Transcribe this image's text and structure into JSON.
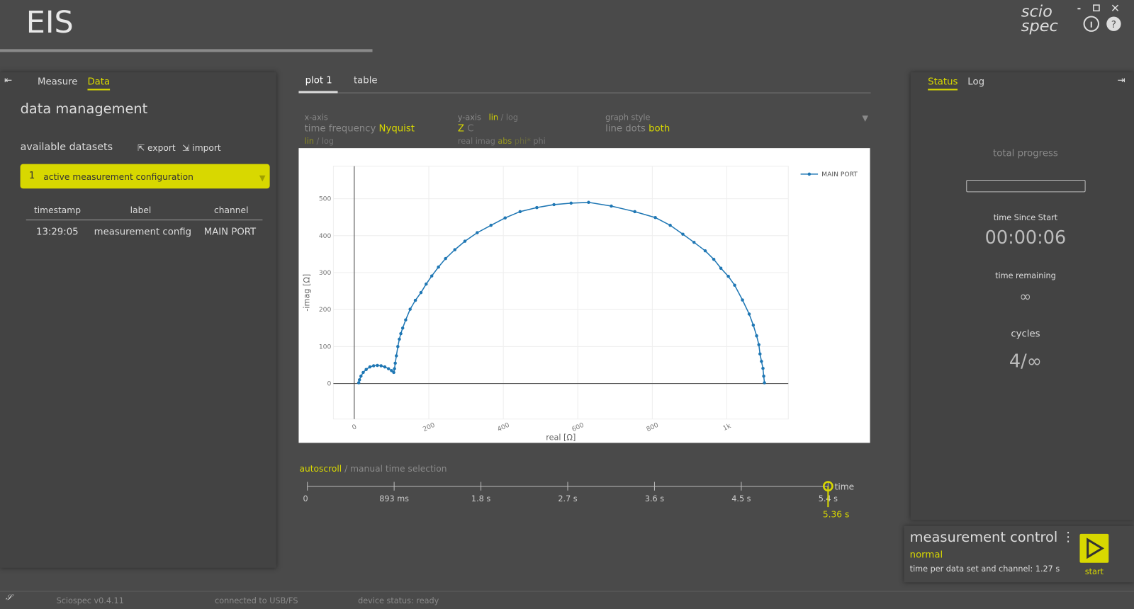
{
  "header": {
    "title": "EIS",
    "logo_top": "scio",
    "logo_bottom": "spec"
  },
  "left_panel": {
    "tabs": [
      "Measure",
      "Data"
    ],
    "heading": "data management",
    "datasets_label": "available datasets",
    "export": "export",
    "import": "import",
    "active_index": "1",
    "active_label": "active measurement configuration",
    "table": {
      "columns": [
        "timestamp",
        "label",
        "channel"
      ],
      "rows": [
        [
          "13:29:05",
          "measurement config",
          "MAIN PORT"
        ]
      ]
    }
  },
  "center": {
    "tabs": [
      "plot 1",
      "table"
    ],
    "separator": "/",
    "x_axis": {
      "label": "x-axis",
      "options": [
        "time",
        "frequency",
        "Nyquist"
      ],
      "scale": [
        "lin",
        "log"
      ]
    },
    "y_axis": {
      "label": "y-axis",
      "scale": [
        "lin",
        "log"
      ],
      "quantity": [
        "Z",
        "C"
      ],
      "parts": [
        "real",
        "imag",
        "abs",
        "phi*",
        "phi"
      ]
    },
    "graph_style": {
      "label": "graph style",
      "options": [
        "line",
        "dots",
        "both"
      ]
    },
    "time_mode": [
      "autoscroll",
      "manual time selection"
    ],
    "time_ticks": [
      "0",
      "893 ms",
      "1.8 s",
      "2.7 s",
      "3.6 s",
      "4.5 s",
      "5.4 s"
    ],
    "time_label": "time",
    "time_value": "5.36 s"
  },
  "right_panel": {
    "tabs": [
      "Status",
      "Log"
    ],
    "progress_label": "total progress",
    "elapsed_label": "time Since Start",
    "elapsed": "00:00:06",
    "remaining_label": "time remaining",
    "remaining": "∞",
    "cycles_label": "cycles",
    "cycles": "4/∞"
  },
  "control": {
    "title": "measurement control",
    "mode": "normal",
    "time_per": "time per data set and channel: 1.27 s",
    "start": "start"
  },
  "status_bar": {
    "version": "Sciospec v0.4.11",
    "connection": "connected to USB/FS",
    "device": "device status: ready"
  },
  "chart_data": {
    "type": "line",
    "x_label": "real [Ω]",
    "y_label": "-imag [Ω]",
    "legend": "top-right",
    "grid": true,
    "x": [
      12,
      14,
      18,
      24,
      32,
      42,
      52,
      62,
      72,
      82,
      92,
      100,
      106,
      108,
      110,
      113,
      117,
      121,
      125,
      130,
      138,
      150,
      164,
      179,
      193,
      208,
      226,
      245,
      270,
      297,
      330,
      367,
      405,
      445,
      490,
      536,
      582,
      629,
      690,
      753,
      808,
      848,
      882,
      912,
      942,
      965,
      984,
      1004,
      1021,
      1042,
      1060,
      1071,
      1080,
      1086,
      1089,
      1093,
      1097,
      1099,
      1101
    ],
    "series": [
      {
        "name": "MAIN PORT",
        "color": "#1f77b4",
        "values": [
          2,
          10,
          20,
          30,
          38,
          45,
          48,
          49,
          48,
          45,
          40,
          35,
          30,
          40,
          55,
          75,
          100,
          120,
          135,
          150,
          172,
          201,
          225,
          246,
          269,
          291,
          315,
          338,
          362,
          385,
          408,
          428,
          448,
          465,
          476,
          484,
          488,
          490,
          480,
          465,
          449,
          428,
          404,
          382,
          359,
          336,
          312,
          290,
          266,
          226,
          188,
          158,
          129,
          105,
          80,
          60,
          41,
          20,
          2
        ]
      }
    ],
    "xlim": [
      -56,
      1165
    ],
    "ylim": [
      -96,
      588
    ],
    "xticks": [
      0,
      200,
      400,
      600,
      800,
      {
        "value": 1000,
        "label": "1k"
      }
    ],
    "yticks": [
      0,
      100,
      200,
      300,
      400,
      500
    ]
  }
}
